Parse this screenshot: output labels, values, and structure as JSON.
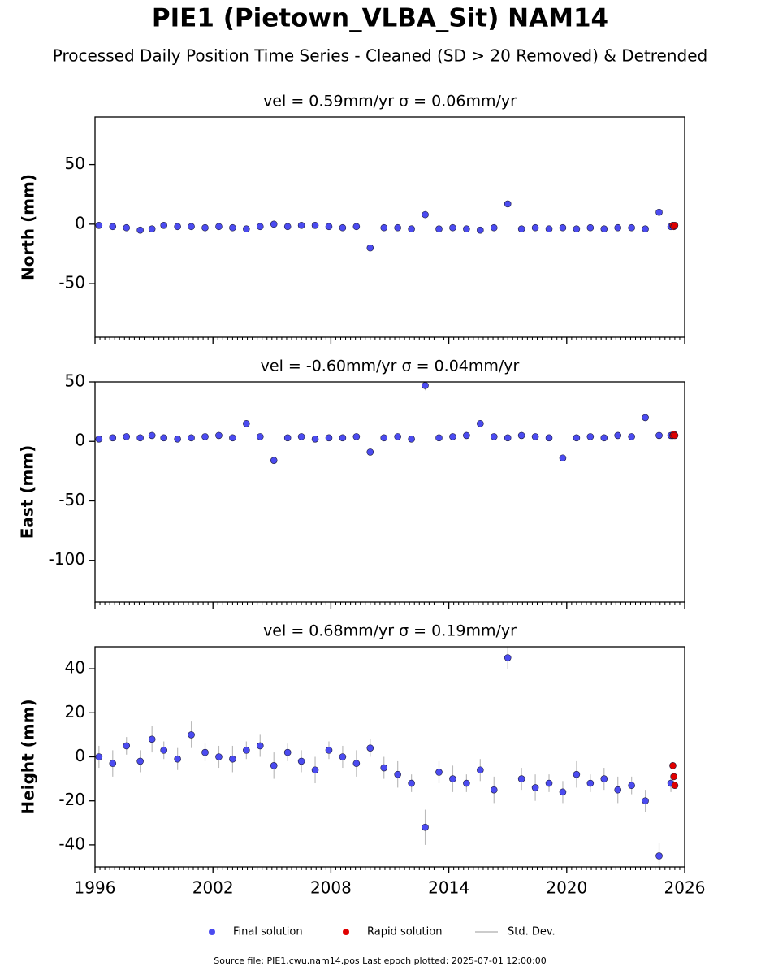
{
  "title": "PIE1 (Pietown_VLBA_Sit) NAM14",
  "subtitle": "Processed Daily Position Time Series - Cleaned (SD > 20 Removed) & Detrended",
  "source": "Source file: PIE1.cwu.nam14.pos  Last epoch plotted: 2025-07-01 12:00:00",
  "error_label": "Std. Dev.",
  "error_color": "#bbbbbb",
  "chart_data": [
    {
      "type": "scatter",
      "title": "vel = 0.59mm/yr   σ = 0.06mm/yr",
      "y_label": "North (mm)",
      "xlim": [
        1996,
        2026
      ],
      "xticks": [
        1996,
        2002,
        2008,
        2014,
        2020,
        2026
      ],
      "ylim": [
        -95,
        90
      ],
      "yticks": [
        -50,
        0,
        50
      ],
      "series": [
        {
          "name": "Final solution",
          "color": "#4b4bf0",
          "x": [
            1996.2,
            1996.9,
            1997.6,
            1998.3,
            1998.9,
            1999.5,
            2000.2,
            2000.9,
            2001.6,
            2002.3,
            2003.0,
            2003.7,
            2004.4,
            2005.1,
            2005.8,
            2006.5,
            2007.2,
            2007.9,
            2008.6,
            2009.3,
            2010.0,
            2010.7,
            2011.4,
            2012.1,
            2012.8,
            2013.5,
            2014.2,
            2014.9,
            2015.6,
            2016.3,
            2017.0,
            2017.7,
            2018.4,
            2019.1,
            2019.8,
            2020.5,
            2021.2,
            2021.9,
            2022.6,
            2023.3,
            2024.0,
            2024.7,
            2025.3
          ],
          "values": [
            -1,
            -2,
            -3,
            -5,
            -4,
            -1,
            -2,
            -2,
            -3,
            -2,
            -3,
            -4,
            -2,
            0,
            -2,
            -1,
            -1,
            -2,
            -3,
            -2,
            -20,
            -3,
            -3,
            -4,
            8,
            -4,
            -3,
            -4,
            -5,
            -3,
            17,
            -4,
            -3,
            -4,
            -3,
            -4,
            -3,
            -4,
            -3,
            -3,
            -4,
            10,
            -2
          ],
          "errors": [
            1.5,
            1.5,
            1.5,
            1.5,
            1.5,
            1.5,
            1.5,
            1.5,
            1.5,
            1.5,
            1.5,
            1.5,
            1.5,
            1.5,
            1.5,
            1.5,
            1.5,
            1.5,
            1.5,
            1.5,
            2,
            1.5,
            1.5,
            1.5,
            3,
            1.5,
            1.5,
            1.5,
            1.5,
            1.5,
            2,
            1.5,
            1.5,
            1.5,
            1.5,
            1.5,
            1.5,
            1.5,
            1.5,
            1.5,
            1.5,
            2,
            1.5
          ]
        },
        {
          "name": "Rapid solution",
          "color": "#e00000",
          "x": [
            2025.4,
            2025.45,
            2025.5
          ],
          "values": [
            -1,
            -2,
            -1
          ]
        }
      ]
    },
    {
      "type": "scatter",
      "title": "vel = -0.60mm/yr   σ = 0.04mm/yr",
      "y_label": "East (mm)",
      "xlim": [
        1996,
        2026
      ],
      "xticks": [
        1996,
        2002,
        2008,
        2014,
        2020,
        2026
      ],
      "ylim": [
        -135,
        50
      ],
      "yticks": [
        -100,
        -50,
        0,
        50
      ],
      "series": [
        {
          "name": "Final solution",
          "color": "#4b4bf0",
          "x": [
            1996.2,
            1996.9,
            1997.6,
            1998.3,
            1998.9,
            1999.5,
            2000.2,
            2000.9,
            2001.6,
            2002.3,
            2003.0,
            2003.7,
            2004.4,
            2005.1,
            2005.8,
            2006.5,
            2007.2,
            2007.9,
            2008.6,
            2009.3,
            2010.0,
            2010.7,
            2011.4,
            2012.1,
            2012.8,
            2013.5,
            2014.2,
            2014.9,
            2015.6,
            2016.3,
            2017.0,
            2017.7,
            2018.4,
            2019.1,
            2019.8,
            2020.5,
            2021.2,
            2021.9,
            2022.6,
            2023.3,
            2024.0,
            2024.7,
            2025.3
          ],
          "values": [
            2,
            3,
            4,
            3,
            5,
            3,
            2,
            3,
            4,
            5,
            3,
            15,
            4,
            -16,
            3,
            4,
            2,
            3,
            3,
            4,
            -9,
            3,
            4,
            2,
            47,
            3,
            4,
            5,
            15,
            4,
            3,
            5,
            4,
            3,
            -14,
            3,
            4,
            3,
            5,
            4,
            20,
            5,
            5
          ],
          "errors": [
            1.5,
            1.5,
            1.5,
            1.5,
            1.5,
            1.5,
            1.5,
            1.5,
            1.5,
            1.5,
            1.5,
            2,
            1.5,
            3,
            1.5,
            1.5,
            1.5,
            1.5,
            1.5,
            1.5,
            2,
            1.5,
            1.5,
            1.5,
            4,
            1.5,
            1.5,
            1.5,
            2,
            1.5,
            1.5,
            1.5,
            1.5,
            1.5,
            2,
            1.5,
            1.5,
            1.5,
            1.5,
            1.5,
            2,
            1.5,
            1.5
          ]
        },
        {
          "name": "Rapid solution",
          "color": "#e00000",
          "x": [
            2025.4,
            2025.45,
            2025.5
          ],
          "values": [
            5,
            6,
            5
          ]
        }
      ]
    },
    {
      "type": "scatter",
      "title": "vel = 0.68mm/yr   σ = 0.19mm/yr",
      "y_label": "Height (mm)",
      "xlim": [
        1996,
        2026
      ],
      "xticks": [
        1996,
        2002,
        2008,
        2014,
        2020,
        2026
      ],
      "ylim": [
        -50,
        50
      ],
      "yticks": [
        -40,
        -20,
        0,
        20,
        40
      ],
      "series": [
        {
          "name": "Final solution",
          "color": "#4b4bf0",
          "x": [
            1996.2,
            1996.9,
            1997.6,
            1998.3,
            1998.9,
            1999.5,
            2000.2,
            2000.9,
            2001.6,
            2002.3,
            2003.0,
            2003.7,
            2004.4,
            2005.1,
            2005.8,
            2006.5,
            2007.2,
            2007.9,
            2008.6,
            2009.3,
            2010.0,
            2010.7,
            2011.4,
            2012.1,
            2012.8,
            2013.5,
            2014.2,
            2014.9,
            2015.6,
            2016.3,
            2017.0,
            2017.7,
            2018.4,
            2019.1,
            2019.8,
            2020.5,
            2021.2,
            2021.9,
            2022.6,
            2023.3,
            2024.0,
            2024.7,
            2025.3
          ],
          "values": [
            0,
            -3,
            5,
            -2,
            8,
            3,
            -1,
            10,
            2,
            0,
            -1,
            3,
            5,
            -4,
            2,
            -2,
            -6,
            3,
            0,
            -3,
            4,
            -5,
            -8,
            -12,
            -32,
            -7,
            -10,
            -12,
            -6,
            -15,
            45,
            -10,
            -14,
            -12,
            -16,
            -8,
            -12,
            -10,
            -15,
            -13,
            -20,
            -45,
            -12
          ],
          "errors": [
            5,
            6,
            4,
            5,
            6,
            4,
            5,
            6,
            4,
            5,
            6,
            4,
            5,
            6,
            4,
            5,
            6,
            4,
            5,
            6,
            4,
            5,
            6,
            4,
            8,
            5,
            6,
            4,
            5,
            6,
            5,
            5,
            6,
            4,
            5,
            6,
            4,
            5,
            6,
            4,
            5,
            6,
            4
          ]
        },
        {
          "name": "Rapid solution",
          "color": "#e00000",
          "x": [
            2025.4,
            2025.45,
            2025.5
          ],
          "values": [
            -4,
            -9,
            -13
          ]
        }
      ]
    }
  ]
}
